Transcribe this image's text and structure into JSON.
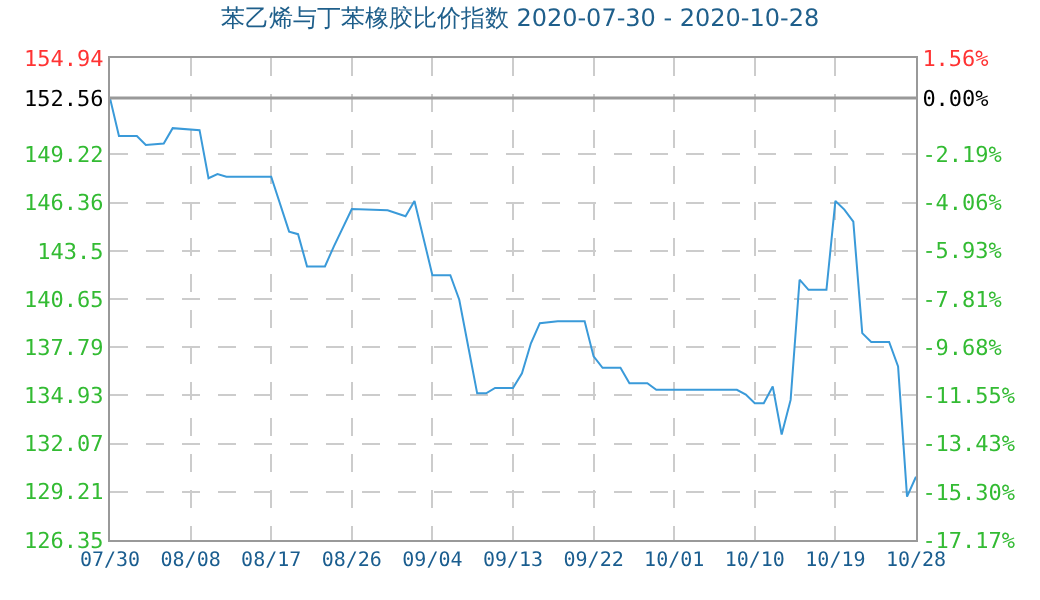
{
  "chart_data": {
    "type": "line",
    "title": "苯乙烯与丁苯橡胶比价指数 2020-07-30 - 2020-10-28",
    "x": [
      "2020-07-30",
      "2020-07-31",
      "2020-08-02",
      "2020-08-03",
      "2020-08-05",
      "2020-08-06",
      "2020-08-09",
      "2020-08-10",
      "2020-08-11",
      "2020-08-12",
      "2020-08-17",
      "2020-08-19",
      "2020-08-20",
      "2020-08-21",
      "2020-08-23",
      "2020-08-24",
      "2020-08-26",
      "2020-08-30",
      "2020-09-01",
      "2020-09-02",
      "2020-09-04",
      "2020-09-06",
      "2020-09-07",
      "2020-09-08",
      "2020-09-09",
      "2020-09-10",
      "2020-09-11",
      "2020-09-13",
      "2020-09-14",
      "2020-09-15",
      "2020-09-16",
      "2020-09-18",
      "2020-09-21",
      "2020-09-22",
      "2020-09-23",
      "2020-09-25",
      "2020-09-26",
      "2020-09-28",
      "2020-09-29",
      "2020-10-08",
      "2020-10-09",
      "2020-10-10",
      "2020-10-11",
      "2020-10-12",
      "2020-10-13",
      "2020-10-14",
      "2020-10-15",
      "2020-10-16",
      "2020-10-18",
      "2020-10-19",
      "2020-10-20",
      "2020-10-21",
      "2020-10-22",
      "2020-10-23",
      "2020-10-25",
      "2020-10-26",
      "2020-10-27",
      "2020-10-28"
    ],
    "series": [
      {
        "color": "#3a9ad9",
        "values": [
          152.56,
          150.31,
          150.31,
          149.78,
          149.87,
          150.78,
          150.66,
          147.81,
          148.05,
          147.9,
          147.9,
          144.64,
          144.49,
          142.58,
          142.58,
          143.77,
          145.98,
          145.91,
          145.55,
          146.46,
          142.06,
          142.06,
          140.6,
          137.83,
          135.05,
          135.05,
          135.37,
          135.37,
          136.24,
          138.02,
          139.21,
          139.33,
          139.33,
          137.24,
          136.56,
          136.56,
          135.65,
          135.65,
          135.26,
          135.26,
          134.98,
          134.46,
          134.46,
          135.46,
          132.61,
          134.66,
          141.79,
          141.19,
          141.19,
          146.46,
          145.95,
          145.23,
          138.62,
          138.1,
          138.1,
          136.64,
          128.92,
          130.1
        ]
      }
    ],
    "xlim": [
      "2020-07-30",
      "2020-10-28"
    ],
    "xticks": [
      {
        "value": "2020-07-30",
        "label": "07/30"
      },
      {
        "value": "2020-08-08",
        "label": "08/08"
      },
      {
        "value": "2020-08-17",
        "label": "08/17"
      },
      {
        "value": "2020-08-26",
        "label": "08/26"
      },
      {
        "value": "2020-09-04",
        "label": "09/04"
      },
      {
        "value": "2020-09-13",
        "label": "09/13"
      },
      {
        "value": "2020-09-22",
        "label": "09/22"
      },
      {
        "value": "2020-10-01",
        "label": "10/01"
      },
      {
        "value": "2020-10-10",
        "label": "10/10"
      },
      {
        "value": "2020-10-19",
        "label": "10/19"
      },
      {
        "value": "2020-10-28",
        "label": "10/28"
      }
    ],
    "ylim": [
      126.35,
      154.94
    ],
    "yticks": [
      126.35,
      129.21,
      132.07,
      134.93,
      137.79,
      140.65,
      143.5,
      146.36,
      149.22,
      152.56,
      154.94
    ],
    "y2lim": [
      -17.17,
      1.56
    ],
    "y2ticks": [
      {
        "value": -17.17,
        "label": "-17.17%"
      },
      {
        "value": -15.3,
        "label": "-15.30%"
      },
      {
        "value": -13.43,
        "label": "-13.43%"
      },
      {
        "value": -11.55,
        "label": "-11.55%"
      },
      {
        "value": -9.68,
        "label": "-9.68%"
      },
      {
        "value": -7.81,
        "label": "-7.81%"
      },
      {
        "value": -5.93,
        "label": "-5.93%"
      },
      {
        "value": -4.06,
        "label": "-4.06%"
      },
      {
        "value": -2.19,
        "label": "-2.19%"
      },
      {
        "value": 0,
        "label": "0.00%"
      },
      {
        "value": 1.56,
        "label": "1.56%"
      }
    ],
    "ref_lines": [
      {
        "axis": "y",
        "value": 152.56,
        "color": "#999999"
      }
    ],
    "grid": true,
    "legend": false,
    "marker": "none",
    "line_style": "solid"
  }
}
